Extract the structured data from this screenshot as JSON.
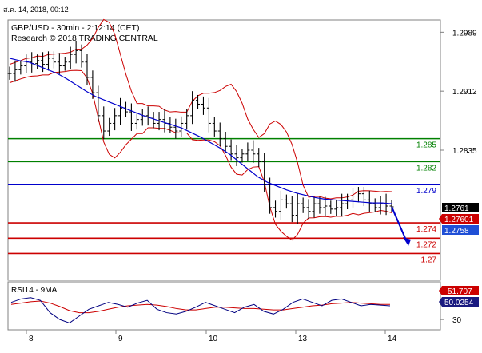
{
  "header": {
    "timestamp": "ส.ค. 14, 2018, 00:12",
    "instrument_line": "GBP/USD - 30min - 2:12:14 (CET)",
    "copyright_line": "Research © 2018 TRADING CENTRAL"
  },
  "colors": {
    "price_bars": "#000000",
    "moving_average": "#0000cc",
    "bollinger_bands": "#cc0000",
    "support_lines": "#cc0000",
    "resistance_lines": "#008000",
    "pivot_line": "#0000cc",
    "forecast_arrow": "#0000cc",
    "rsi_line": "#000080",
    "rsi_ma": "#cc0000",
    "label_bid": "#cc0000",
    "label_ask": "#1f4fd6",
    "label_last": "#000000"
  },
  "chart_data": [
    {
      "type": "line",
      "title": "GBP/USD - 30min",
      "xlabel": "",
      "ylabel": "",
      "ylim": [
        1.2665,
        1.3005
      ],
      "x_ticks": [
        "8",
        "9",
        "10",
        "13",
        "14"
      ],
      "y_ticks": [
        1.2989,
        1.2912,
        1.2835
      ],
      "grid": false,
      "series": [
        {
          "style": "ohlc-bars",
          "values": [
            1.2935,
            1.294,
            1.2945,
            1.295,
            1.2948,
            1.2952,
            1.2947,
            1.2955,
            1.295,
            1.2945,
            1.295,
            1.296,
            1.2965,
            1.295,
            1.293,
            1.291,
            1.288,
            1.286,
            1.287,
            1.288,
            1.289,
            1.2885,
            1.287,
            1.2875,
            1.288,
            1.2878,
            1.287,
            1.2875,
            1.287,
            1.2865,
            1.286,
            1.287,
            1.288,
            1.29,
            1.2895,
            1.289,
            1.287,
            1.286,
            1.285,
            1.284,
            1.283,
            1.2825,
            1.283,
            1.2835,
            1.283,
            1.282,
            1.279,
            1.276,
            1.2755,
            1.277,
            1.2765,
            1.275,
            1.2765,
            1.276,
            1.2755,
            1.2765,
            1.276,
            1.2762,
            1.2758,
            1.276,
            1.2765,
            1.277,
            1.2775,
            1.2778,
            1.277,
            1.2765,
            1.276,
            1.2765,
            1.2762,
            1.2761
          ]
        },
        {
          "name": "",
          "style": "moving-average",
          "values": [
            1.2955,
            1.2952,
            1.295,
            1.2945,
            1.294,
            1.2935,
            1.2928,
            1.292,
            1.2912,
            1.2905,
            1.29,
            1.2895,
            1.289,
            1.2885,
            1.288,
            1.2876,
            1.2872,
            1.2868,
            1.2864,
            1.2858,
            1.2852,
            1.2845,
            1.2838,
            1.283,
            1.282,
            1.281,
            1.28,
            1.2793,
            1.2788,
            1.2783,
            1.2779,
            1.2776,
            1.2773,
            1.2771,
            1.277,
            1.2769,
            1.2768,
            1.2767,
            1.2766,
            1.2766,
            1.2765
          ]
        }
      ],
      "levels": [
        {
          "value": 1.285,
          "label": "1.285",
          "kind": "resistance"
        },
        {
          "value": 1.282,
          "label": "1.282",
          "kind": "resistance"
        },
        {
          "value": 1.279,
          "label": "1.279",
          "kind": "pivot"
        },
        {
          "value": 1.274,
          "label": "1.274",
          "kind": "support"
        },
        {
          "value": 1.272,
          "label": "1.272",
          "kind": "support"
        },
        {
          "value": 1.27,
          "label": "1.27",
          "kind": "support"
        }
      ],
      "price_labels": {
        "last": "1.2761",
        "bid": "1.27601",
        "ask": "1.2758"
      }
    },
    {
      "type": "line",
      "title": "RSI14 - 9MA",
      "xlabel": "",
      "ylabel": "",
      "ylim": [
        15,
        85
      ],
      "y_ticks": [
        30
      ],
      "series": [
        {
          "name": "RSI14",
          "values": [
            55,
            60,
            62,
            58,
            40,
            30,
            25,
            35,
            45,
            50,
            55,
            52,
            48,
            54,
            58,
            45,
            40,
            38,
            42,
            48,
            55,
            50,
            45,
            40,
            48,
            52,
            42,
            38,
            45,
            55,
            60,
            55,
            50,
            58,
            60,
            55,
            50,
            52,
            51,
            50
          ]
        },
        {
          "name": "9MA",
          "values": [
            52,
            54,
            56,
            57,
            54,
            49,
            43,
            40,
            40,
            42,
            45,
            48,
            50,
            51,
            52,
            51,
            49,
            46,
            44,
            44,
            46,
            48,
            48,
            47,
            46,
            46,
            45,
            44,
            44,
            46,
            48,
            50,
            51,
            53,
            54,
            55,
            54,
            53,
            52,
            52
          ]
        }
      ],
      "value_labels": {
        "rsi": "50.0254",
        "ma": "51.707"
      }
    }
  ]
}
